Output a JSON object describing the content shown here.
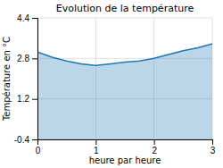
{
  "chart_data": {
    "type": "area",
    "title": "Evolution de la température",
    "xlabel": "heure par heure",
    "ylabel": "Température en °C",
    "x": [
      0,
      0.25,
      0.5,
      0.75,
      1.0,
      1.25,
      1.5,
      1.75,
      2.0,
      2.25,
      2.5,
      2.75,
      3.0
    ],
    "values": [
      3.05,
      2.85,
      2.7,
      2.58,
      2.52,
      2.58,
      2.65,
      2.7,
      2.8,
      2.95,
      3.1,
      3.22,
      3.38
    ],
    "xlim": [
      0,
      3
    ],
    "ylim": [
      -0.4,
      4.4
    ],
    "xticks": [
      0,
      1,
      2,
      3
    ],
    "yticks": [
      -0.4,
      1.2,
      2.8,
      4.4
    ],
    "grid": true
  }
}
